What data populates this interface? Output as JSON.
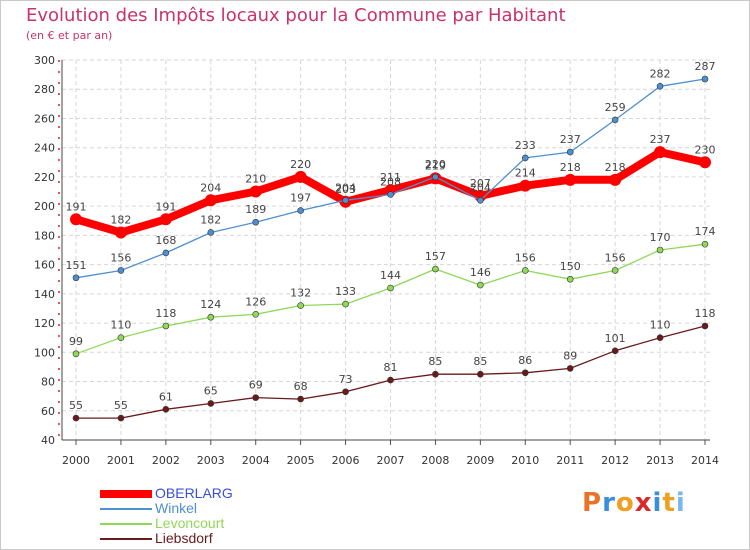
{
  "header": {
    "title": "Evolution des Impôts locaux pour la Commune par Habitant",
    "subtitle": "(en € et par an)"
  },
  "logo": {
    "text": "Proxiti",
    "colors": [
      "#e8742a",
      "#3a8fd8",
      "#f0a020",
      "#d82a2a",
      "#3a8fd8",
      "#f0a020",
      "#7ab8e8"
    ]
  },
  "chart_data": {
    "type": "line",
    "title": "Evolution des Impôts locaux pour la Commune par Habitant",
    "subtitle": "(en € et par an)",
    "xlabel": "",
    "ylabel": "",
    "ylim": [
      40,
      300
    ],
    "yticks": [
      40,
      60,
      80,
      100,
      120,
      140,
      160,
      180,
      200,
      220,
      240,
      260,
      280,
      300
    ],
    "grid": true,
    "legend_position": "bottom-left",
    "x": [
      "2000",
      "2001",
      "2002",
      "2003",
      "2004",
      "2005",
      "2006",
      "2007",
      "2008",
      "2009",
      "2010",
      "2011",
      "2012",
      "2013",
      "2014"
    ],
    "series": [
      {
        "name": "OBERLARG",
        "color": "#ff0000",
        "legend_color": "#3a4fd8",
        "values": [
          191,
          182,
          191,
          204,
          210,
          220,
          203,
          211,
          219,
          207,
          214,
          218,
          218,
          237,
          230
        ]
      },
      {
        "name": "Winkel",
        "color": "#4d8fd0",
        "legend_color": "#4d8fd0",
        "values": [
          151,
          156,
          168,
          182,
          189,
          197,
          204,
          208,
          220,
          204,
          233,
          237,
          259,
          282,
          287
        ]
      },
      {
        "name": "Levoncourt",
        "color": "#8fd858",
        "legend_color": "#8fd858",
        "values": [
          99,
          110,
          118,
          124,
          126,
          132,
          133,
          144,
          157,
          146,
          156,
          150,
          156,
          170,
          174
        ]
      },
      {
        "name": "Liebsdorf",
        "color": "#6a1a1a",
        "legend_color": "#6a1a1a",
        "values": [
          55,
          55,
          61,
          65,
          69,
          68,
          73,
          81,
          85,
          85,
          86,
          89,
          101,
          110,
          118
        ]
      }
    ]
  }
}
